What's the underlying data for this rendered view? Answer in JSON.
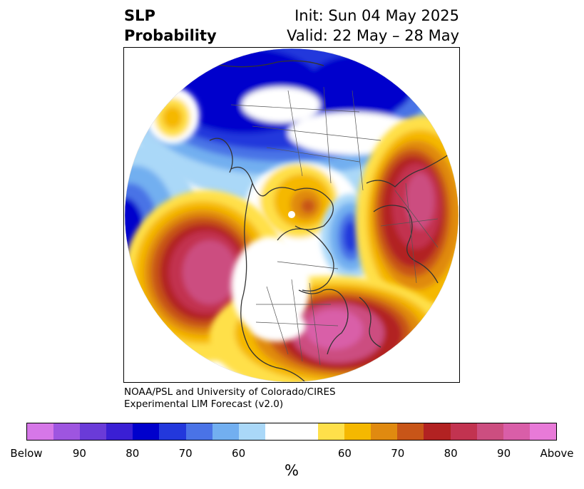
{
  "header": {
    "title_line1": "SLP",
    "title_line2": "Probability",
    "init": "Init: Sun 04 May 2025",
    "valid": "Valid: 22 May – 28 May"
  },
  "credit": {
    "line1": "NOAA/PSL and University of Colorado/CIRES",
    "line2": "Experimental LIM Forecast (v2.0)"
  },
  "colorbar": {
    "colors": [
      "#d677e8",
      "#9e55e0",
      "#6a3bd8",
      "#3a1fd4",
      "#0000cc",
      "#2338dc",
      "#4a73e6",
      "#72aff0",
      "#aad8f8",
      "#ffffff",
      "#ffffff",
      "#ffe04a",
      "#f5b800",
      "#e08a10",
      "#c85518",
      "#b22222",
      "#c23350",
      "#cc4e80",
      "#d95ea8",
      "#e87ad8"
    ],
    "tick_labels": [
      "Below",
      "90",
      "80",
      "70",
      "60",
      "60",
      "70",
      "80",
      "90",
      "Above"
    ],
    "unit_label": "%"
  }
}
